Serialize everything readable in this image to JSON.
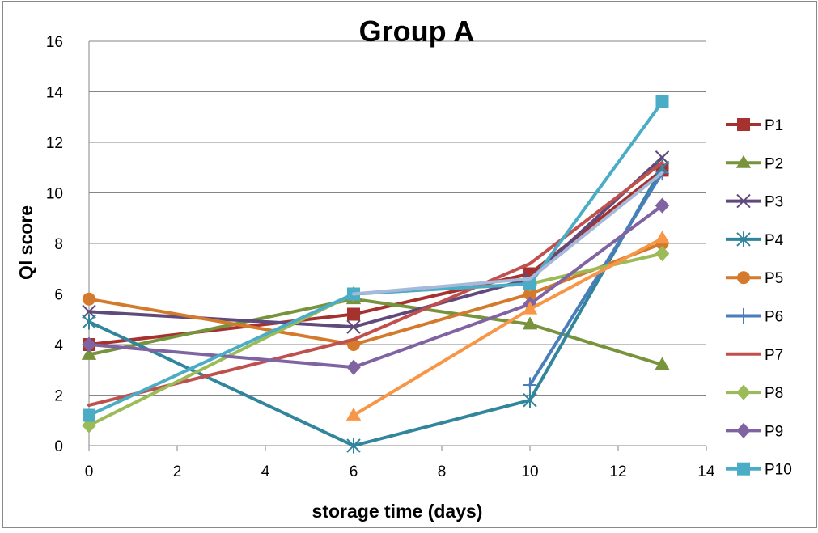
{
  "chart_data": {
    "type": "line",
    "title": "Group A",
    "xlabel": "storage time (days)",
    "ylabel": "QI score",
    "xlim": [
      0,
      14
    ],
    "ylim": [
      0,
      16
    ],
    "xticks": [
      0,
      2,
      4,
      6,
      8,
      10,
      12,
      14
    ],
    "yticks": [
      0,
      2,
      4,
      6,
      8,
      10,
      12,
      14,
      16
    ],
    "grid": "horizontal",
    "legend_position": "right",
    "series": [
      {
        "name": "P1",
        "color": "#A5322E",
        "marker": "square",
        "x": [
          0,
          6,
          10,
          13
        ],
        "y": [
          4.0,
          5.2,
          6.8,
          10.9
        ]
      },
      {
        "name": "P2",
        "color": "#77933C",
        "marker": "triangle",
        "x": [
          0,
          6,
          10,
          13
        ],
        "y": [
          3.6,
          5.8,
          4.8,
          3.2
        ]
      },
      {
        "name": "P3",
        "color": "#604A7B",
        "marker": "x",
        "x": [
          0,
          6,
          10,
          13
        ],
        "y": [
          5.3,
          4.7,
          6.6,
          11.4
        ]
      },
      {
        "name": "P4",
        "color": "#31859C",
        "marker": "star",
        "x": [
          0,
          6,
          10,
          13
        ],
        "y": [
          4.9,
          0.0,
          1.8,
          11.0
        ]
      },
      {
        "name": "P5",
        "color": "#D47A2C",
        "marker": "circle",
        "x": [
          0,
          6,
          10,
          13
        ],
        "y": [
          5.8,
          4.0,
          6.0,
          8.0
        ]
      },
      {
        "name": "P6",
        "color": "#4A7EBB",
        "marker": "plus",
        "x": [
          10,
          13
        ],
        "y": [
          2.4,
          10.8
        ]
      },
      {
        "name": "P7",
        "color": "#C0504D",
        "marker": "none",
        "x": [
          0,
          6,
          10,
          13
        ],
        "y": [
          1.6,
          4.2,
          7.2,
          11.2
        ]
      },
      {
        "name": "P8",
        "color": "#9BBB59",
        "marker": "diamond",
        "x": [
          0,
          6,
          10,
          13
        ],
        "y": [
          0.8,
          6.0,
          6.4,
          7.6
        ]
      },
      {
        "name": "P9",
        "color": "#8064A2",
        "marker": "diamond",
        "x": [
          0,
          6,
          10,
          13
        ],
        "y": [
          4.0,
          3.1,
          5.6,
          9.5
        ]
      },
      {
        "name": "P10",
        "color": "#4BACC6",
        "marker": "square",
        "x": [
          0,
          6,
          10,
          13
        ],
        "y": [
          1.2,
          6.0,
          6.4,
          13.6
        ]
      },
      {
        "name": "",
        "color": "#A6B9DB",
        "marker": "none",
        "x": [
          6,
          10,
          13
        ],
        "y": [
          6.0,
          6.6,
          10.8
        ]
      },
      {
        "name": "",
        "color": "#F79646",
        "marker": "triangle",
        "x": [
          6,
          10,
          13
        ],
        "y": [
          1.2,
          5.4,
          8.2
        ]
      }
    ]
  }
}
